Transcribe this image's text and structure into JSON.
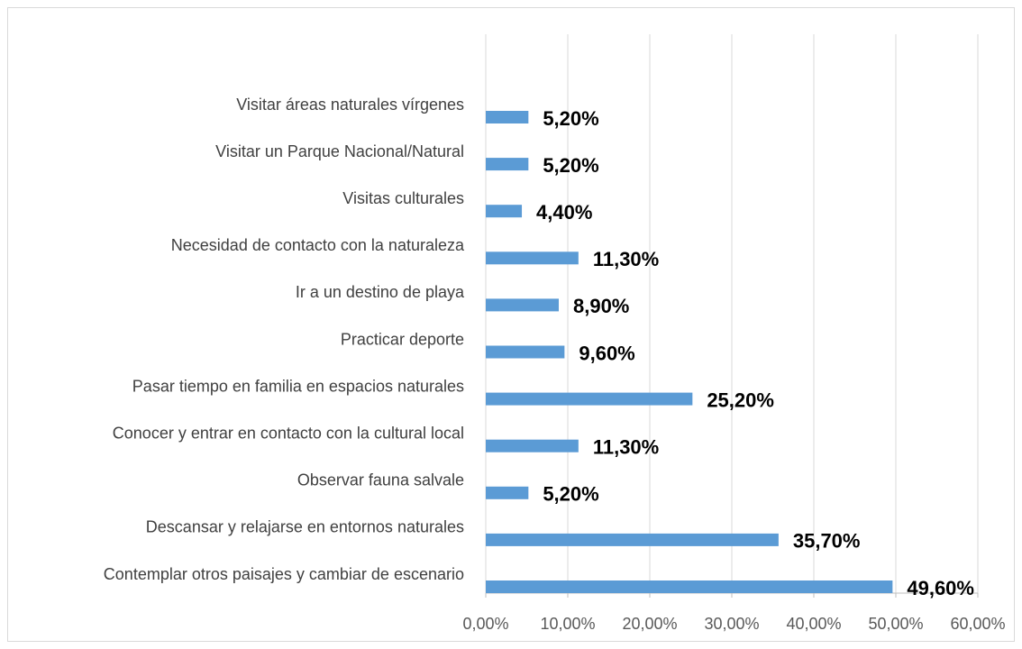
{
  "chart_data": {
    "type": "bar",
    "orientation": "horizontal",
    "categories": [
      "Visitar áreas naturales vírgenes",
      "Visitar un Parque Nacional/Natural",
      "Visitas culturales",
      "Necesidad de contacto con la naturaleza",
      "Ir a un destino de  playa",
      "Practicar deporte",
      "Pasar tiempo en familia en espacios naturales",
      "Conocer y entrar en contacto con la cultural local",
      "Observar fauna salvale",
      "Descansar y relajarse en entornos naturales",
      "Contemplar otros paisajes y cambiar de escenario"
    ],
    "values": [
      5.2,
      5.2,
      4.4,
      11.3,
      8.9,
      9.6,
      25.2,
      11.3,
      5.2,
      35.7,
      49.6
    ],
    "value_labels": [
      "5,20%",
      "5,20%",
      "4,40%",
      "11,30%",
      "8,90%",
      "9,60%",
      "25,20%",
      "11,30%",
      "5,20%",
      "35,70%",
      "49,60%"
    ],
    "color": "#5b9bd5",
    "xlim": [
      0,
      60
    ],
    "xticks": [
      {
        "value": 0,
        "label": "0,00%"
      },
      {
        "value": 10,
        "label": "10,00%"
      },
      {
        "value": 20,
        "label": "20,00%"
      },
      {
        "value": 30,
        "label": "30,00%"
      },
      {
        "value": 40,
        "label": "40,00%"
      },
      {
        "value": 50,
        "label": "50,00%"
      },
      {
        "value": 60,
        "label": "60,00%"
      }
    ],
    "grid": true
  }
}
